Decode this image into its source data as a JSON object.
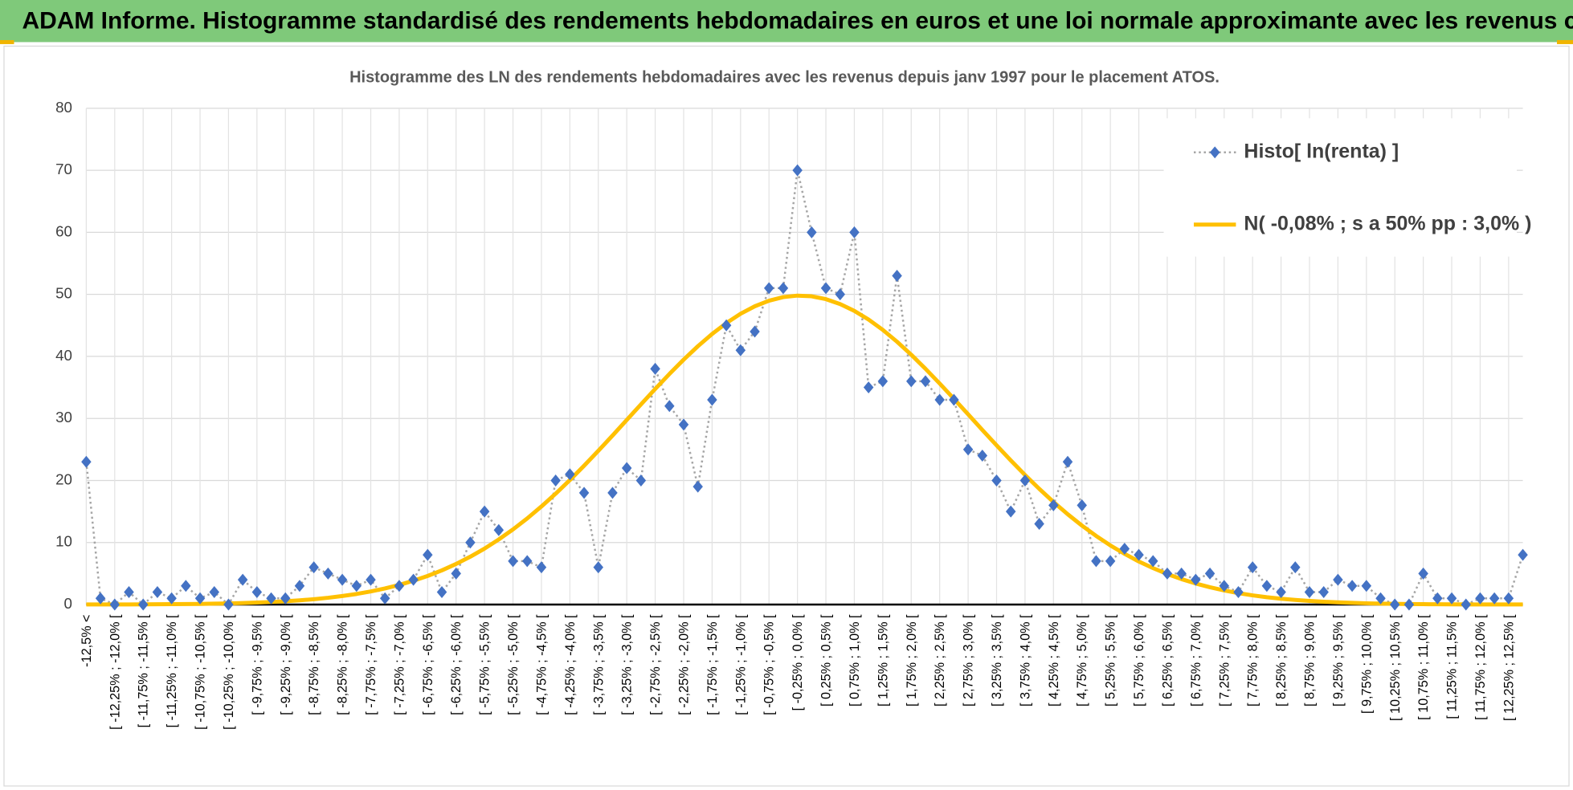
{
  "title": "ADAM Informe. Histogramme standardisé des rendements hebdomadaires en euros et une loi normale approximante avec les revenus connus distribués",
  "chart_data": {
    "type": "line",
    "title": "Histogramme des LN des rendements hebdomadaires avec les revenus depuis janv 1997 pour le placement ATOS.",
    "categories": [
      "-12,5% <",
      null,
      "[ -12,25% ; -12,0% [",
      null,
      "[ -11,75% ; -11,5% [",
      null,
      "[ -11,25% ; -11,0% [",
      null,
      "[ -10,75% ; -10,5% [",
      null,
      "[ -10,25% ; -10,0% [",
      null,
      "[ -9,75% ; -9,5% [",
      null,
      "[ -9,25% ; -9,0% [",
      null,
      "[ -8,75% ; -8,5% [",
      null,
      "[ -8,25% ; -8,0% [",
      null,
      "[ -7,75% ; -7,5% [",
      null,
      "[ -7,25% ; -7,0% [",
      null,
      "[ -6,75% ; -6,5% [",
      null,
      "[ -6,25% ; -6,0% [",
      null,
      "[ -5,75% ; -5,5% [",
      null,
      "[ -5,25% ; -5,0% [",
      null,
      "[ -4,75% ; -4,5% [",
      null,
      "[ -4,25% ; -4,0% [",
      null,
      "[ -3,75% ; -3,5% [",
      null,
      "[ -3,25% ; -3,0% [",
      null,
      "[ -2,75% ; -2,5% [",
      null,
      "[ -2,25% ; -2,0% [",
      null,
      "[ -1,75% ; -1,5% [",
      null,
      "[ -1,25% ; -1,0% [",
      null,
      "[ -0,75% ; -0,5% [",
      null,
      "[ -0,25% ; 0,0% [",
      null,
      "[ 0,25% ; 0,5% [",
      null,
      "[ 0,75% ; 1,0% [",
      null,
      "[ 1,25% ; 1,5% [",
      null,
      "[ 1,75% ; 2,0% [",
      null,
      "[ 2,25% ; 2,5% [",
      null,
      "[ 2,75% ; 3,0% [",
      null,
      "[ 3,25% ; 3,5% [",
      null,
      "[ 3,75% ; 4,0% [",
      null,
      "[ 4,25% ; 4,5% [",
      null,
      "[ 4,75% ; 5,0% [",
      null,
      "[ 5,25% ; 5,5% [",
      null,
      "[ 5,75% ; 6,0% [",
      null,
      "[ 6,25% ; 6,5% [",
      null,
      "[ 6,75% ; 7,0% [",
      null,
      "[ 7,25% ; 7,5% [",
      null,
      "[ 7,75% ; 8,0% [",
      null,
      "[ 8,25% ; 8,5% [",
      null,
      "[ 8,75% ; 9,0% [",
      null,
      "[ 9,25% ; 9,5% [",
      null,
      "[ 9,75% ; 10,0% [",
      null,
      "[ 10,25% ; 10,5% [",
      null,
      "[ 10,75% ; 11,0% [",
      null,
      "[ 11,25% ; 11,5% [",
      null,
      "[ 11,75% ; 12,0% [",
      null,
      "[ 12,25% ; 12,5% [",
      null
    ],
    "series": [
      {
        "name": "Histo[ ln(renta) ]",
        "color": "#4472c4",
        "values": [
          23,
          1,
          0,
          2,
          0,
          2,
          1,
          3,
          1,
          2,
          0,
          4,
          2,
          1,
          1,
          3,
          6,
          5,
          4,
          3,
          4,
          1,
          3,
          4,
          8,
          2,
          5,
          10,
          15,
          12,
          7,
          7,
          6,
          20,
          21,
          18,
          6,
          18,
          22,
          20,
          38,
          32,
          29,
          19,
          33,
          45,
          41,
          44,
          51,
          51,
          70,
          60,
          51,
          50,
          60,
          35,
          36,
          53,
          36,
          36,
          33,
          33,
          25,
          24,
          20,
          15,
          20,
          13,
          16,
          23,
          16,
          7,
          7,
          9,
          8,
          7,
          5,
          5,
          4,
          5,
          3,
          2,
          6,
          3,
          2,
          6,
          2,
          2,
          4,
          3,
          3,
          1,
          0,
          0,
          5,
          1,
          1,
          0,
          1,
          1,
          1,
          8
        ]
      },
      {
        "name": "N( -0,08% ; s a 50% pp : 3,0% )",
        "color": "#ffc000",
        "values": [
          0.01,
          0.01,
          0.01,
          0.02,
          0.03,
          0.04,
          0.06,
          0.08,
          0.1,
          0.14,
          0.18,
          0.24,
          0.32,
          0.41,
          0.53,
          0.68,
          0.86,
          1.09,
          1.37,
          1.7,
          2.11,
          2.59,
          3.16,
          3.83,
          4.61,
          5.51,
          6.54,
          7.71,
          9.02,
          10.49,
          12.11,
          13.88,
          15.81,
          17.87,
          20.06,
          22.38,
          24.78,
          27.24,
          29.76,
          32.27,
          34.75,
          37.17,
          39.48,
          41.64,
          43.61,
          45.37,
          46.87,
          48.08,
          48.98,
          49.56,
          49.8,
          49.69,
          49.23,
          48.44,
          47.34,
          45.94,
          44.28,
          42.37,
          40.27,
          38.01,
          35.63,
          33.17,
          30.66,
          28.14,
          25.66,
          23.23,
          20.89,
          18.65,
          16.53,
          14.56,
          12.73,
          11.06,
          9.53,
          8.17,
          6.94,
          5.87,
          4.92,
          4.1,
          3.39,
          2.79,
          2.27,
          1.84,
          1.48,
          1.18,
          0.94,
          0.74,
          0.58,
          0.45,
          0.35,
          0.27,
          0.2,
          0.15,
          0.11,
          0.08,
          0.06,
          0.04,
          0.03,
          0.02,
          0.02,
          0.01,
          0.01,
          0.01
        ]
      }
    ],
    "ylim": [
      0,
      80
    ],
    "yticks": [
      0,
      10,
      20,
      30,
      40,
      50,
      60,
      70,
      80
    ],
    "grid": true,
    "legend": "top-right"
  }
}
